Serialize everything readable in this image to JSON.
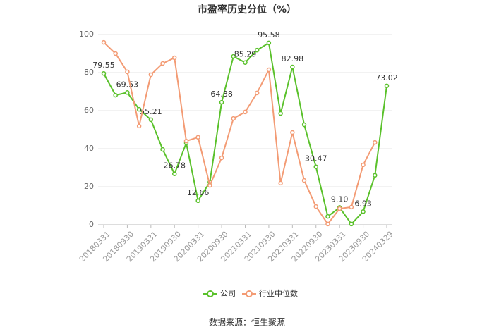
{
  "chart_data": {
    "type": "line",
    "title": "市盈率历史分位（%）",
    "categories": [
      "20180331",
      null,
      "20180930",
      null,
      "20190331",
      null,
      "20190930",
      null,
      "20200331",
      null,
      "20200930",
      null,
      "20210331",
      null,
      "20210930",
      null,
      "20220331",
      null,
      "20220930",
      null,
      "20230331",
      null,
      "20230930",
      null,
      "20240329"
    ],
    "series": [
      {
        "name": "公司",
        "color": "#5ac12b",
        "values": [
          79.55,
          68.1,
          69.53,
          60.7,
          55.21,
          39.6,
          26.78,
          43,
          12.66,
          22.5,
          64.38,
          88.5,
          85.29,
          91.8,
          95.58,
          58.5,
          82.98,
          52.6,
          30.47,
          4.4,
          9.1,
          0.4,
          6.93,
          26,
          73.02
        ],
        "value_labels": [
          "79.55",
          null,
          "69.53",
          null,
          "55.21",
          null,
          "26.78",
          null,
          "12.66",
          null,
          "64.38",
          null,
          "85.29",
          null,
          "95.58",
          null,
          "82.98",
          null,
          "30.47",
          null,
          "9.10",
          null,
          "6.93",
          null,
          "73.02"
        ]
      },
      {
        "name": "行业中位数",
        "color": "#f39b74",
        "values": [
          95.9,
          90,
          80.4,
          51.9,
          78.9,
          84.8,
          87.8,
          44,
          46,
          20.7,
          35.2,
          55.9,
          59.3,
          69.3,
          81.5,
          21.9,
          48.5,
          23.3,
          9.6,
          0.4,
          8.5,
          9.3,
          31.5,
          43.3,
          null
        ]
      }
    ],
    "ylim": [
      0,
      100
    ],
    "yticks": [
      0,
      20,
      40,
      60,
      80,
      100
    ],
    "grid": true,
    "source": "数据来源：恒生聚源"
  }
}
